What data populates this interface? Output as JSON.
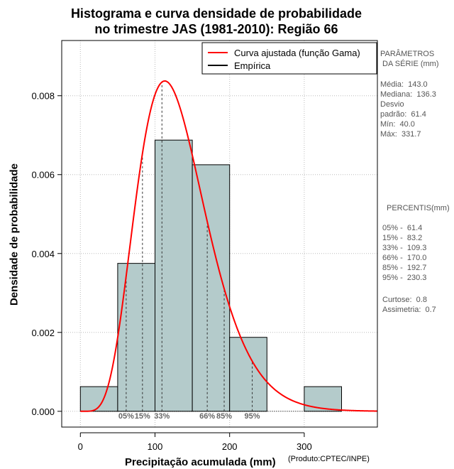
{
  "chart_data": {
    "type": "histogram",
    "title_line1": "Histograma e curva densidade de probabilidade",
    "title_line2": "no trimestre JAS (1981-2010): Região 66",
    "xlabel": "Precipitação acumulada (mm)",
    "ylabel": "Densidade de probabilidade",
    "credit": "(Produto:CPTEC/INPE)",
    "xlim": [
      -25,
      398
    ],
    "ylim": [
      -0.0004,
      0.0094
    ],
    "x_ticks": [
      0,
      100,
      200,
      300
    ],
    "x_tick_labels": [
      "0",
      "100",
      "200",
      "300"
    ],
    "y_ticks": [
      0,
      0.002,
      0.004,
      0.006,
      0.008
    ],
    "y_tick_labels": [
      "0.000",
      "0.002",
      "0.004",
      "0.006",
      "0.008"
    ],
    "bins": [
      {
        "start": 0,
        "end": 50,
        "density": 0.000625
      },
      {
        "start": 50,
        "end": 100,
        "density": 0.00375
      },
      {
        "start": 100,
        "end": 150,
        "density": 0.006875
      },
      {
        "start": 150,
        "end": 200,
        "density": 0.00625
      },
      {
        "start": 200,
        "end": 250,
        "density": 0.001875
      },
      {
        "start": 300,
        "end": 350,
        "density": 0.000625
      }
    ],
    "gamma_fit": {
      "shape": 6.8,
      "scale": 19.5
    },
    "percentile_lines": [
      {
        "label": "05%",
        "value": 61.4
      },
      {
        "label": "15%",
        "value": 83.2
      },
      {
        "label": "33%",
        "value": 109.3
      },
      {
        "label": "66%",
        "value": 170.0
      },
      {
        "label": "85%",
        "value": 192.7
      },
      {
        "label": "95%",
        "value": 230.3
      }
    ],
    "legend": [
      {
        "label": "Curva ajustada (função Gama)",
        "color": "#ff0000"
      },
      {
        "label": "Empírica",
        "color": "#000000"
      }
    ],
    "legend_position": "top-right",
    "colors": {
      "bar_fill": "#b4cbcb",
      "curve": "#ff0000",
      "grid": "#bbbbbb"
    }
  },
  "sidebar": {
    "params_title": "PARÂMETROS\n DA SÉRIE (mm)",
    "params": "Média:  143.0\nMediana:  136.3\nDesvio\npadrão:  61.4\nMín:  40.0\nMáx:  331.7",
    "percentis_title": "PERCENTIS(mm)",
    "percentis": "05% -  61.4\n15% -  83.2\n33% -  109.3\n66% -  170.0\n85% -  192.7\n95% -  230.3",
    "stats": "Curtose:  0.8\nAssimetria:  0.7"
  }
}
